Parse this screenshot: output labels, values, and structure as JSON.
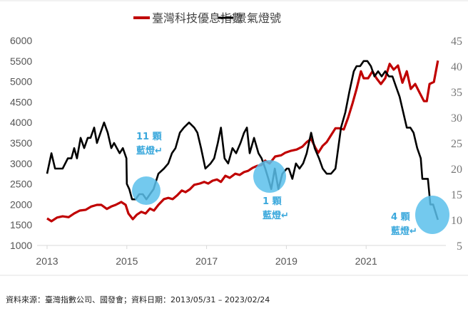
{
  "chart_data": {
    "type": "line",
    "legend_position": "top",
    "grid": false,
    "x_ticks": [
      "2013",
      "2015",
      "2017",
      "2019",
      "2021"
    ],
    "x_range": [
      2013,
      2023.3
    ],
    "y_left": {
      "ticks": [
        "6000",
        "5500",
        "5000",
        "4500",
        "4000",
        "3500",
        "3000",
        "2500",
        "2000",
        "1500",
        "1000"
      ],
      "range": [
        1000,
        6000
      ]
    },
    "y_right": {
      "ticks": [
        "45",
        "40",
        "35",
        "30",
        "25",
        "20",
        "15",
        "10",
        "5"
      ],
      "range": [
        5,
        45
      ]
    },
    "series": [
      {
        "name": "臺灣科技優息指數",
        "axis": "left",
        "color": "#c00000",
        "points": [
          [
            2013.0,
            1660
          ],
          [
            2013.11,
            1590
          ],
          [
            2013.25,
            1680
          ],
          [
            2013.39,
            1710
          ],
          [
            2013.54,
            1690
          ],
          [
            2013.68,
            1780
          ],
          [
            2013.82,
            1850
          ],
          [
            2013.97,
            1870
          ],
          [
            2014.11,
            1950
          ],
          [
            2014.25,
            1990
          ],
          [
            2014.36,
            1990
          ],
          [
            2014.5,
            1890
          ],
          [
            2014.61,
            1950
          ],
          [
            2014.72,
            1990
          ],
          [
            2014.86,
            2060
          ],
          [
            2014.97,
            1990
          ],
          [
            2015.04,
            1780
          ],
          [
            2015.15,
            1640
          ],
          [
            2015.25,
            1750
          ],
          [
            2015.36,
            1820
          ],
          [
            2015.47,
            1780
          ],
          [
            2015.58,
            1900
          ],
          [
            2015.68,
            1850
          ],
          [
            2015.79,
            1990
          ],
          [
            2015.93,
            2130
          ],
          [
            2016.04,
            2160
          ],
          [
            2016.15,
            2130
          ],
          [
            2016.26,
            2220
          ],
          [
            2016.38,
            2340
          ],
          [
            2016.47,
            2300
          ],
          [
            2016.58,
            2370
          ],
          [
            2016.69,
            2480
          ],
          [
            2016.83,
            2510
          ],
          [
            2016.94,
            2550
          ],
          [
            2017.04,
            2510
          ],
          [
            2017.15,
            2580
          ],
          [
            2017.26,
            2610
          ],
          [
            2017.36,
            2550
          ],
          [
            2017.47,
            2700
          ],
          [
            2017.58,
            2650
          ],
          [
            2017.72,
            2750
          ],
          [
            2017.83,
            2720
          ],
          [
            2017.94,
            2790
          ],
          [
            2018.04,
            2820
          ],
          [
            2018.15,
            2890
          ],
          [
            2018.26,
            2940
          ],
          [
            2018.37,
            2960
          ],
          [
            2018.47,
            3070
          ],
          [
            2018.58,
            3000
          ],
          [
            2018.72,
            3170
          ],
          [
            2018.87,
            3200
          ],
          [
            2018.97,
            3260
          ],
          [
            2019.12,
            3310
          ],
          [
            2019.26,
            3340
          ],
          [
            2019.4,
            3410
          ],
          [
            2019.51,
            3520
          ],
          [
            2019.62,
            3600
          ],
          [
            2019.73,
            3380
          ],
          [
            2019.8,
            3260
          ],
          [
            2019.91,
            3430
          ],
          [
            2020.01,
            3520
          ],
          [
            2020.12,
            3690
          ],
          [
            2020.23,
            3860
          ],
          [
            2020.33,
            3860
          ],
          [
            2020.44,
            3830
          ],
          [
            2020.55,
            4120
          ],
          [
            2020.66,
            4470
          ],
          [
            2020.76,
            4820
          ],
          [
            2020.87,
            5250
          ],
          [
            2020.94,
            5080
          ],
          [
            2021.05,
            5080
          ],
          [
            2021.16,
            5250
          ],
          [
            2021.26,
            5080
          ],
          [
            2021.37,
            4940
          ],
          [
            2021.48,
            5080
          ],
          [
            2021.59,
            5430
          ],
          [
            2021.69,
            5290
          ],
          [
            2021.8,
            5390
          ],
          [
            2021.91,
            4970
          ],
          [
            2022.02,
            5250
          ],
          [
            2022.12,
            4820
          ],
          [
            2022.23,
            4940
          ],
          [
            2022.34,
            4730
          ],
          [
            2022.45,
            4520
          ],
          [
            2022.52,
            4520
          ],
          [
            2022.59,
            4940
          ],
          [
            2022.7,
            4990
          ],
          [
            2022.8,
            5510
          ]
        ]
      },
      {
        "name": "景氣燈號",
        "axis": "right",
        "color": "#000000",
        "points": [
          [
            2013.0,
            19
          ],
          [
            2013.11,
            23
          ],
          [
            2013.2,
            20
          ],
          [
            2013.39,
            20
          ],
          [
            2013.52,
            22
          ],
          [
            2013.61,
            22
          ],
          [
            2013.68,
            24
          ],
          [
            2013.75,
            22
          ],
          [
            2013.84,
            26
          ],
          [
            2013.93,
            24
          ],
          [
            2014.02,
            26
          ],
          [
            2014.09,
            26
          ],
          [
            2014.18,
            28
          ],
          [
            2014.25,
            25
          ],
          [
            2014.34,
            27
          ],
          [
            2014.43,
            29
          ],
          [
            2014.52,
            27
          ],
          [
            2014.61,
            24
          ],
          [
            2014.68,
            25
          ],
          [
            2014.75,
            24
          ],
          [
            2014.82,
            23
          ],
          [
            2014.9,
            24
          ],
          [
            2014.99,
            22
          ],
          [
            2015.0,
            17
          ],
          [
            2015.06,
            16
          ],
          [
            2015.13,
            14
          ],
          [
            2015.22,
            14
          ],
          [
            2015.31,
            15
          ],
          [
            2015.4,
            15
          ],
          [
            2015.49,
            14
          ],
          [
            2015.58,
            15
          ],
          [
            2015.67,
            16
          ],
          [
            2015.79,
            19
          ],
          [
            2015.93,
            20
          ],
          [
            2016.04,
            21
          ],
          [
            2016.13,
            23
          ],
          [
            2016.22,
            24
          ],
          [
            2016.33,
            27
          ],
          [
            2016.43,
            28
          ],
          [
            2016.56,
            29
          ],
          [
            2016.69,
            28
          ],
          [
            2016.77,
            27
          ],
          [
            2016.86,
            24
          ],
          [
            2016.97,
            20
          ],
          [
            2017.1,
            21
          ],
          [
            2017.19,
            22
          ],
          [
            2017.28,
            25
          ],
          [
            2017.36,
            28
          ],
          [
            2017.45,
            22
          ],
          [
            2017.54,
            21
          ],
          [
            2017.65,
            24
          ],
          [
            2017.74,
            23
          ],
          [
            2017.85,
            25
          ],
          [
            2017.94,
            27
          ],
          [
            2018.01,
            28
          ],
          [
            2018.08,
            23
          ],
          [
            2018.19,
            26
          ],
          [
            2018.3,
            23
          ],
          [
            2018.38,
            22
          ],
          [
            2018.47,
            20
          ],
          [
            2018.55,
            18
          ],
          [
            2018.62,
            16
          ],
          [
            2018.71,
            20
          ],
          [
            2018.8,
            16
          ],
          [
            2018.9,
            19
          ],
          [
            2019.01,
            20
          ],
          [
            2019.06,
            20
          ],
          [
            2019.15,
            18
          ],
          [
            2019.24,
            21
          ],
          [
            2019.33,
            20
          ],
          [
            2019.42,
            21
          ],
          [
            2019.51,
            23
          ],
          [
            2019.62,
            27
          ],
          [
            2019.71,
            24
          ],
          [
            2019.82,
            22
          ],
          [
            2019.91,
            20
          ],
          [
            2020.01,
            19
          ],
          [
            2020.12,
            19
          ],
          [
            2020.23,
            20
          ],
          [
            2020.3,
            24
          ],
          [
            2020.37,
            28
          ],
          [
            2020.48,
            31
          ],
          [
            2020.58,
            35
          ],
          [
            2020.69,
            39
          ],
          [
            2020.76,
            40
          ],
          [
            2020.85,
            40
          ],
          [
            2020.94,
            41
          ],
          [
            2021.03,
            41
          ],
          [
            2021.12,
            40
          ],
          [
            2021.21,
            38
          ],
          [
            2021.3,
            39
          ],
          [
            2021.39,
            38
          ],
          [
            2021.48,
            39
          ],
          [
            2021.57,
            38
          ],
          [
            2021.66,
            38
          ],
          [
            2021.75,
            36
          ],
          [
            2021.84,
            34
          ],
          [
            2021.93,
            31
          ],
          [
            2022.02,
            28
          ],
          [
            2022.11,
            28
          ],
          [
            2022.19,
            27
          ],
          [
            2022.28,
            24
          ],
          [
            2022.37,
            22
          ],
          [
            2022.41,
            18
          ],
          [
            2022.46,
            18
          ],
          [
            2022.55,
            18
          ],
          [
            2022.61,
            13
          ],
          [
            2022.68,
            13
          ],
          [
            2022.8,
            10
          ]
        ]
      }
    ],
    "annotations": [
      {
        "line1": "11 顆",
        "line2": "藍燈↵"
      },
      {
        "line1": "1 顆",
        "line2": "藍燈↵"
      },
      {
        "line1": "4 顆",
        "line2": "藍燈↵"
      }
    ],
    "highlight_color": "#5bc0eb",
    "annotation_color": "#3aa8dc"
  },
  "source_note": "資料來源：臺灣指數公司、國發會；資料日期：2013/05/31 – 2023/02/24"
}
